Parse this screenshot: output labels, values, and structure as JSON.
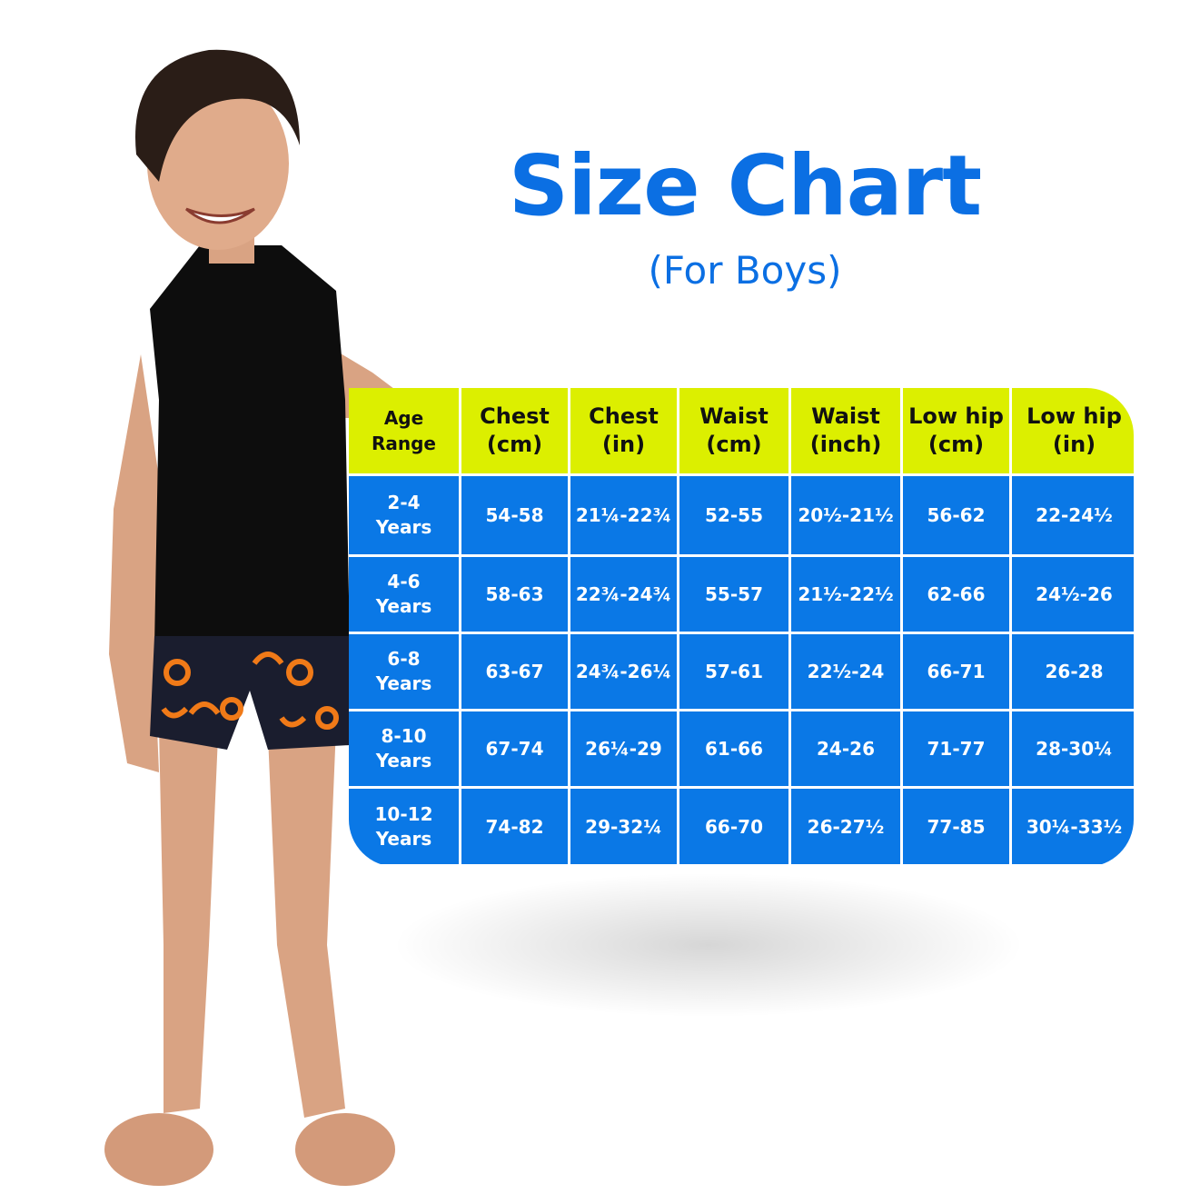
{
  "title": "Size Chart",
  "subtitle": "(For Boys)",
  "colors": {
    "title": "#0b6fe3",
    "header_bg": "#dcef00",
    "body_bg": "#0a78e6"
  },
  "table": {
    "headers": [
      [
        "Age",
        "Range"
      ],
      [
        "Chest",
        "(cm)"
      ],
      [
        "Chest",
        "(in)"
      ],
      [
        "Waist",
        "(cm)"
      ],
      [
        "Waist",
        "(inch)"
      ],
      [
        "Low hip",
        "(cm)"
      ],
      [
        "Low hip",
        "(in)"
      ]
    ],
    "rows": [
      {
        "age": [
          "2-4",
          "Years"
        ],
        "values": [
          "54-58",
          "21¼-22¾",
          "52-55",
          "20½-21½",
          "56-62",
          "22-24½"
        ]
      },
      {
        "age": [
          "4-6",
          "Years"
        ],
        "values": [
          "58-63",
          "22¾-24¾",
          "55-57",
          "21½-22½",
          "62-66",
          "24½-26"
        ]
      },
      {
        "age": [
          "6-8",
          "Years"
        ],
        "values": [
          "63-67",
          "24¾-26¼",
          "57-61",
          "22½-24",
          "66-71",
          "26-28"
        ]
      },
      {
        "age": [
          "8-10",
          "Years"
        ],
        "values": [
          "67-74",
          "26¼-29",
          "61-66",
          "24-26",
          "71-77",
          "28-30¼"
        ]
      },
      {
        "age": [
          "10-12",
          "Years"
        ],
        "values": [
          "74-82",
          "29-32¼",
          "66-70",
          "26-27½",
          "77-85",
          "30¼-33½"
        ]
      }
    ]
  }
}
